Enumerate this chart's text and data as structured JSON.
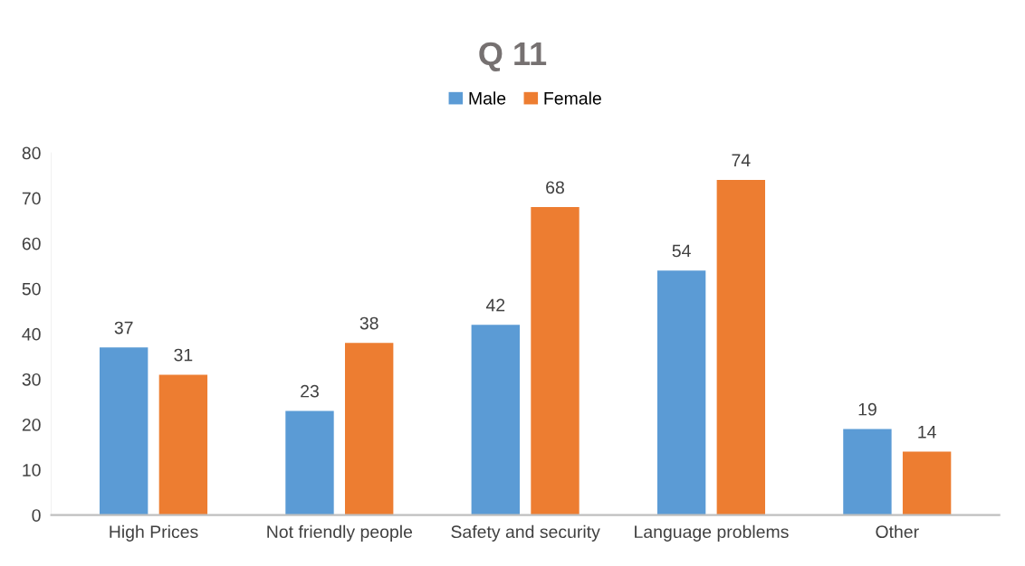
{
  "chart_data": {
    "type": "bar",
    "title": "Q 11",
    "categories": [
      "High Prices",
      "Not friendly people",
      "Safety and security",
      "Language problems",
      "Other"
    ],
    "series": [
      {
        "name": "Male",
        "color": "#5b9bd5",
        "values": [
          37,
          23,
          42,
          54,
          19
        ]
      },
      {
        "name": "Female",
        "color": "#ed7d31",
        "values": [
          31,
          38,
          68,
          74,
          14
        ]
      }
    ],
    "ylim": [
      0,
      80
    ],
    "yticks": [
      0,
      10,
      20,
      30,
      40,
      50,
      60,
      70,
      80
    ],
    "grid": false,
    "legend": "top",
    "data_labels": true
  }
}
